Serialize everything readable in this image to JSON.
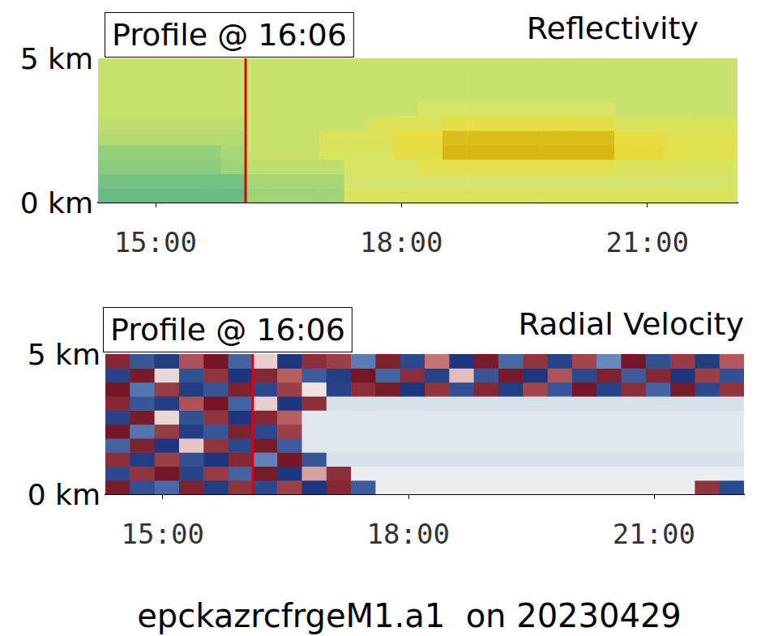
{
  "chart_data": [
    {
      "type": "heatmap",
      "title": "Reflectivity",
      "xlim": [
        14.3,
        22.1
      ],
      "xticks": [
        {
          "value": 15,
          "label": "15:00"
        },
        {
          "value": 18,
          "label": "18:00"
        },
        {
          "value": 21,
          "label": "21:00"
        }
      ],
      "ylim": [
        0,
        5
      ],
      "yticks": [
        {
          "value": 0,
          "label": "0 km"
        },
        {
          "value": 5,
          "label": "5 km"
        }
      ],
      "grid": false,
      "tick_labels": true,
      "annotations": [
        {
          "x": 16.1,
          "text": "Profile @ 16:06",
          "color": "#e00000"
        }
      ],
      "color_range": [
        -50,
        -20
      ],
      "x_edges": [
        14.3,
        14.6,
        14.9,
        15.2,
        15.5,
        15.8,
        16.1,
        16.4,
        16.7,
        17.0,
        17.3,
        17.6,
        17.9,
        18.2,
        18.5,
        18.8,
        19.1,
        19.4,
        19.7,
        20.0,
        20.3,
        20.6,
        20.9,
        21.2,
        21.5,
        21.8,
        22.1
      ],
      "y_edges": [
        0,
        0.5,
        1,
        1.5,
        2,
        2.5,
        3,
        3.5,
        4,
        4.5,
        5
      ],
      "values": [
        [
          -45,
          -45,
          -45,
          -45,
          -45,
          -45,
          -40,
          -40,
          -40,
          -40,
          -33,
          -33,
          -33,
          -33,
          -33,
          -33,
          -33,
          -33,
          -33,
          -33,
          -33,
          -33,
          -33,
          -33,
          -33,
          -33
        ],
        [
          -44,
          -44,
          -44,
          -44,
          -44,
          -44,
          -39,
          -39,
          -39,
          -39,
          -35,
          -35,
          -35,
          -35,
          -35,
          -35,
          -35,
          -35,
          -35,
          -35,
          -35,
          -35,
          -35,
          -35,
          -35,
          -35
        ],
        [
          -42,
          -42,
          -42,
          -42,
          -42,
          -40,
          -37,
          -37,
          -37,
          -37,
          -34,
          -34,
          -34,
          -30,
          -30,
          -30,
          -30,
          -30,
          -30,
          -30,
          -30,
          -33,
          -33,
          -33,
          -33,
          -33
        ],
        [
          -41,
          -41,
          -41,
          -41,
          -41,
          -39,
          -36,
          -36,
          -36,
          -33,
          -33,
          -33,
          -29,
          -29,
          -22,
          -22,
          -22,
          -22,
          -22,
          -22,
          -22,
          -27,
          -27,
          -30,
          -30,
          -30
        ],
        [
          -38,
          -38,
          -38,
          -38,
          -38,
          -38,
          -36,
          -36,
          -36,
          -32,
          -32,
          -32,
          -28,
          -28,
          -23,
          -23,
          -23,
          -23,
          -23,
          -23,
          -23,
          -28,
          -28,
          -31,
          -31,
          -31
        ],
        [
          -37,
          -37,
          -37,
          -37,
          -37,
          -37,
          -36,
          -36,
          -36,
          -36,
          -36,
          -32,
          -32,
          -32,
          -29,
          -29,
          -29,
          -29,
          -29,
          -29,
          -29,
          -33,
          -33,
          -33,
          -33,
          -33
        ],
        [
          -36,
          -36,
          -36,
          -36,
          -36,
          -36,
          -36,
          -36,
          -36,
          -36,
          -36,
          -36,
          -36,
          -34,
          -34,
          -34,
          -34,
          -34,
          -34,
          -34,
          -34,
          -36,
          -36,
          -36,
          -36,
          -36
        ],
        [
          -36,
          -36,
          -36,
          -36,
          -36,
          -36,
          -36,
          -36,
          -36,
          -36,
          -36,
          -36,
          -36,
          -36,
          -36,
          -36,
          -36,
          -36,
          -36,
          -36,
          -36,
          -36,
          -36,
          -36,
          -36,
          -36
        ],
        [
          -36,
          -36,
          -36,
          -36,
          -36,
          -36,
          -36,
          -36,
          -36,
          -36,
          -36,
          -36,
          -36,
          -36,
          -36,
          -36,
          -36,
          -36,
          -36,
          -36,
          -36,
          -36,
          -36,
          -36,
          -36,
          -36
        ],
        [
          -36,
          -36,
          -36,
          -36,
          -36,
          -36,
          -36,
          -36,
          -36,
          -36,
          -36,
          -36,
          -36,
          -36,
          -36,
          -36,
          -36,
          -36,
          -36,
          -36,
          -36,
          -36,
          -36,
          -36,
          -36,
          -36
        ]
      ]
    },
    {
      "type": "heatmap",
      "title": "Radial Velocity",
      "xlim": [
        14.3,
        22.1
      ],
      "xticks": [
        {
          "value": 15,
          "label": "15:00"
        },
        {
          "value": 18,
          "label": "18:00"
        },
        {
          "value": 21,
          "label": "21:00"
        }
      ],
      "ylim": [
        0,
        5
      ],
      "yticks": [
        {
          "value": 0,
          "label": "0 km"
        },
        {
          "value": 5,
          "label": "5 km"
        }
      ],
      "grid": false,
      "tick_labels": true,
      "annotations": [
        {
          "x": 16.1,
          "text": "Profile @ 16:06",
          "color": "#e00000"
        }
      ],
      "color_range": [
        -3,
        3
      ],
      "x_edges": [
        14.3,
        14.6,
        14.9,
        15.2,
        15.5,
        15.8,
        16.1,
        16.4,
        16.7,
        17.0,
        17.3,
        17.6,
        17.9,
        18.2,
        18.5,
        18.8,
        19.1,
        19.4,
        19.7,
        20.0,
        20.3,
        20.6,
        20.9,
        21.2,
        21.5,
        21.8,
        22.1
      ],
      "y_edges": [
        0,
        0.5,
        1,
        1.5,
        2,
        2.5,
        3,
        3.5,
        4,
        4.5,
        5
      ],
      "values": [
        [
          2.8,
          -2.5,
          -2.1,
          2.7,
          -2.8,
          2.4,
          -2.6,
          2.2,
          -2.9,
          2.6,
          -2.3,
          -0.1,
          -0.1,
          -0.1,
          -0.1,
          -0.1,
          -0.1,
          -0.1,
          -0.1,
          -0.1,
          -0.1,
          -0.1,
          -0.1,
          -0.1,
          2.4,
          -2.6
        ],
        [
          -2.6,
          2.4,
          2.9,
          -2.7,
          2.3,
          -2.2,
          2.8,
          -2.9,
          0.9,
          2.5,
          -0.1,
          -0.1,
          -0.1,
          -0.1,
          -0.1,
          -0.1,
          -0.1,
          -0.1,
          -0.1,
          -0.1,
          -0.1,
          -0.1,
          -0.1,
          -0.1,
          -0.1,
          -0.1
        ],
        [
          2.5,
          -2.8,
          2.2,
          -2.5,
          -2.9,
          2.6,
          -1.7,
          2.9,
          -2.4,
          -0.3,
          -0.3,
          -0.3,
          -0.3,
          -0.3,
          -0.3,
          -0.3,
          -0.3,
          -0.3,
          -0.3,
          -0.3,
          -0.3,
          -0.3,
          -0.3,
          -0.3,
          -0.3,
          -0.3
        ],
        [
          -2.2,
          2.7,
          -2.9,
          0.5,
          2.4,
          -2.6,
          2.8,
          -2.3,
          -0.2,
          -0.2,
          -0.2,
          -0.2,
          -0.2,
          -0.2,
          -0.2,
          -0.2,
          -0.2,
          -0.2,
          -0.2,
          -0.2,
          -0.2,
          -0.2,
          -0.2,
          -0.2,
          -0.2,
          -0.2
        ],
        [
          2.9,
          -1.9,
          2.3,
          -2.8,
          -2.4,
          2.7,
          -2.6,
          2.2,
          -0.2,
          -0.2,
          -0.2,
          -0.2,
          -0.2,
          -0.2,
          -0.2,
          -0.2,
          -0.2,
          -0.2,
          -0.2,
          -0.2,
          -0.2,
          -0.2,
          -0.2,
          -0.2,
          -0.2,
          -0.2
        ],
        [
          -2.7,
          2.8,
          0.3,
          -2.5,
          2.4,
          -2.9,
          2.6,
          1.7,
          -0.2,
          -0.2,
          -0.2,
          -0.2,
          -0.2,
          -0.2,
          -0.2,
          -0.2,
          -0.2,
          -0.2,
          -0.2,
          -0.2,
          -0.2,
          -0.2,
          -0.2,
          -0.2,
          -0.2,
          -0.2
        ],
        [
          2.6,
          -2.4,
          -2.8,
          1.9,
          2.9,
          -2.2,
          0.4,
          -2.9,
          2.5,
          -0.3,
          -0.3,
          -0.3,
          -0.3,
          -0.3,
          -0.3,
          -0.3,
          -0.3,
          -0.3,
          -0.3,
          -0.3,
          -0.3,
          -0.3,
          -0.3,
          -0.3,
          -0.3,
          -0.3
        ],
        [
          2.9,
          -1.9,
          2.3,
          -2.8,
          -2.4,
          2.7,
          -2.6,
          2.2,
          0.2,
          -2.7,
          2.5,
          2.8,
          -2.9,
          2.4,
          -2.5,
          2.6,
          -2.8,
          2.1,
          -2.4,
          2.9,
          -2.7,
          2.5,
          -2.2,
          2.8,
          -2.6,
          2.4
        ],
        [
          -2.7,
          2.8,
          0.3,
          -2.5,
          2.4,
          -2.9,
          2.6,
          1.7,
          -2.3,
          -2.8,
          2.9,
          -2.2,
          2.5,
          -2.7,
          0.6,
          -2.4,
          2.8,
          -2.9,
          1.9,
          -2.6,
          2.7,
          -2.3,
          2.6,
          -2.9,
          2.2,
          -2.5
        ],
        [
          2.6,
          -2.4,
          -2.8,
          1.9,
          2.9,
          -2.2,
          0.4,
          -2.9,
          2.5,
          2.2,
          -1.8,
          2.7,
          -2.6,
          1.4,
          -2.9,
          2.8,
          -2.1,
          2.4,
          -2.7,
          2.1,
          -1.6,
          2.9,
          -2.5,
          2.3,
          -2.8,
          1.8
        ]
      ]
    }
  ],
  "caption": "epckazrcfrgeM1.a1  on 20230429"
}
